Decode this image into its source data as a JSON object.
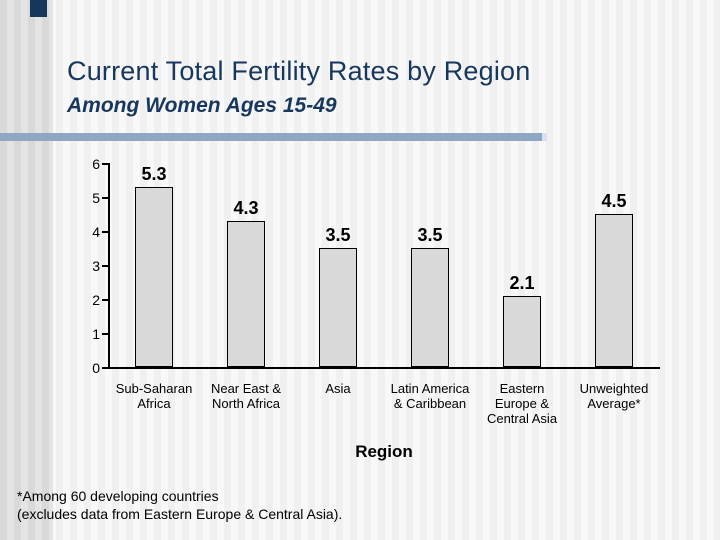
{
  "slide": {
    "title": "Current Total Fertility Rates by Region",
    "subtitle": "Among Women Ages 15-49",
    "footnote": {
      "line1": "*Among 60 developing countries",
      "line2": "(excludes data from Eastern Europe & Central Asia)."
    },
    "colors": {
      "title_text": "#17375D",
      "divider": "#8FA7C2",
      "accent_square": "#16365C",
      "bar_fill": "#D9D9D9",
      "bar_border": "#000000",
      "axis": "#000000"
    }
  },
  "chart_data": {
    "type": "bar",
    "title": "",
    "xlabel": "Region",
    "ylabel": "",
    "ylim": [
      0,
      6
    ],
    "yticks": [
      0,
      1,
      2,
      3,
      4,
      5,
      6
    ],
    "grid": false,
    "legend": false,
    "categories": [
      "Sub-Saharan\nAfrica",
      "Near East &\nNorth Africa",
      "Asia",
      "Latin America\n& Caribbean",
      "Eastern\nEurope &\nCentral Asia",
      "Unweighted\nAverage*"
    ],
    "values": [
      5.3,
      4.3,
      3.5,
      3.5,
      2.1,
      4.5
    ],
    "value_labels": [
      "5.3",
      "4.3",
      "3.5",
      "3.5",
      "2.1",
      "4.5"
    ]
  }
}
